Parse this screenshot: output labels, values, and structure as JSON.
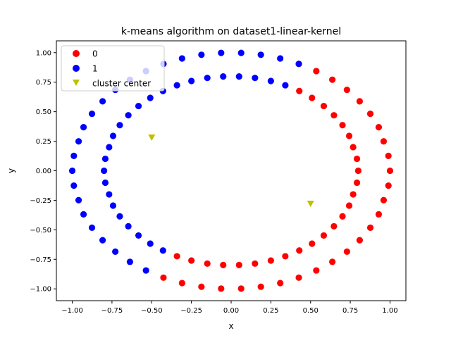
{
  "chart_data": {
    "type": "scatter",
    "title": "k-means algorithm on dataset1-linear-kernel",
    "xlabel": "x",
    "ylabel": "y",
    "xlim": [
      -1.1,
      1.1
    ],
    "ylim": [
      -1.1,
      1.1
    ],
    "grid": false,
    "legend_position": "top-left",
    "x_ticks": [
      -1.0,
      -0.75,
      -0.5,
      -0.25,
      0.0,
      0.25,
      0.5,
      0.75,
      1.0
    ],
    "y_ticks": [
      -1.0,
      -0.75,
      -0.5,
      -0.25,
      0.0,
      0.25,
      0.5,
      0.75,
      1.0
    ],
    "x_tick_labels": [
      "−1.00",
      "−0.75",
      "−0.50",
      "−0.25",
      "0.00",
      "0.25",
      "0.50",
      "0.75",
      "1.00"
    ],
    "y_tick_labels": [
      "−1.00",
      "−0.75",
      "−0.50",
      "−0.25",
      "0.00",
      "0.25",
      "0.50",
      "0.75",
      "1.00"
    ],
    "series": [
      {
        "name": "0",
        "color": "#ff0000",
        "marker": "circle",
        "points": [
          [
            1.0,
            0.0
          ],
          [
            0.99,
            0.126
          ],
          [
            0.96,
            0.249
          ],
          [
            0.929,
            0.369
          ],
          [
            0.876,
            0.482
          ],
          [
            0.809,
            0.588
          ],
          [
            0.729,
            0.685
          ],
          [
            0.637,
            0.771
          ],
          [
            0.536,
            0.844
          ],
          [
            0.426,
            0.905
          ],
          [
            0.99,
            -0.126
          ],
          [
            0.96,
            -0.249
          ],
          [
            0.929,
            -0.369
          ],
          [
            0.876,
            -0.482
          ],
          [
            0.809,
            -0.588
          ],
          [
            0.729,
            -0.685
          ],
          [
            0.637,
            -0.771
          ],
          [
            0.536,
            -0.844
          ],
          [
            0.426,
            -0.905
          ],
          [
            0.309,
            -0.951
          ],
          [
            0.187,
            -0.982
          ],
          [
            0.063,
            -0.998
          ],
          [
            -0.063,
            -0.998
          ],
          [
            -0.187,
            -0.982
          ],
          [
            -0.309,
            -0.951
          ],
          [
            -0.426,
            -0.905
          ],
          [
            0.8,
            0.0
          ],
          [
            0.792,
            0.101
          ],
          [
            0.768,
            0.2
          ],
          [
            0.743,
            0.295
          ],
          [
            0.701,
            0.386
          ],
          [
            0.647,
            0.47
          ],
          [
            0.583,
            0.548
          ],
          [
            0.509,
            0.617
          ],
          [
            0.429,
            0.675
          ],
          [
            0.792,
            -0.101
          ],
          [
            0.768,
            -0.2
          ],
          [
            0.743,
            -0.295
          ],
          [
            0.701,
            -0.386
          ],
          [
            0.647,
            -0.47
          ],
          [
            0.583,
            -0.548
          ],
          [
            0.509,
            -0.617
          ],
          [
            0.429,
            -0.675
          ],
          [
            0.341,
            -0.724
          ],
          [
            0.25,
            -0.76
          ],
          [
            0.15,
            -0.786
          ],
          [
            0.05,
            -0.798
          ],
          [
            -0.05,
            -0.798
          ],
          [
            -0.15,
            -0.786
          ],
          [
            -0.25,
            -0.76
          ],
          [
            -0.341,
            -0.724
          ]
        ]
      },
      {
        "name": "1",
        "color": "#0000ff",
        "marker": "circle",
        "points": [
          [
            -1.0,
            0.0
          ],
          [
            -0.99,
            0.126
          ],
          [
            -0.96,
            0.249
          ],
          [
            -0.929,
            0.369
          ],
          [
            -0.876,
            0.482
          ],
          [
            -0.809,
            0.588
          ],
          [
            -0.729,
            0.685
          ],
          [
            -0.637,
            0.771
          ],
          [
            -0.536,
            0.844
          ],
          [
            -0.426,
            0.905
          ],
          [
            -0.99,
            -0.126
          ],
          [
            -0.96,
            -0.249
          ],
          [
            -0.929,
            -0.369
          ],
          [
            -0.876,
            -0.482
          ],
          [
            -0.809,
            -0.588
          ],
          [
            -0.729,
            -0.685
          ],
          [
            -0.637,
            -0.771
          ],
          [
            -0.536,
            -0.844
          ],
          [
            -0.309,
            0.951
          ],
          [
            -0.187,
            0.982
          ],
          [
            -0.063,
            0.998
          ],
          [
            0.063,
            0.998
          ],
          [
            0.187,
            0.982
          ],
          [
            0.309,
            0.951
          ],
          [
            0.426,
            0.905
          ],
          [
            -0.8,
            0.0
          ],
          [
            -0.792,
            0.101
          ],
          [
            -0.768,
            0.2
          ],
          [
            -0.743,
            0.295
          ],
          [
            -0.701,
            0.386
          ],
          [
            -0.647,
            0.47
          ],
          [
            -0.583,
            0.548
          ],
          [
            -0.509,
            0.617
          ],
          [
            -0.429,
            0.675
          ],
          [
            -0.792,
            -0.101
          ],
          [
            -0.768,
            -0.2
          ],
          [
            -0.743,
            -0.295
          ],
          [
            -0.701,
            -0.386
          ],
          [
            -0.647,
            -0.47
          ],
          [
            -0.583,
            -0.548
          ],
          [
            -0.509,
            -0.617
          ],
          [
            -0.429,
            -0.675
          ],
          [
            -0.341,
            0.724
          ],
          [
            -0.25,
            0.76
          ],
          [
            -0.15,
            0.786
          ],
          [
            -0.05,
            0.798
          ],
          [
            0.05,
            0.798
          ],
          [
            0.15,
            0.786
          ],
          [
            0.25,
            0.76
          ],
          [
            0.341,
            0.724
          ]
        ]
      },
      {
        "name": "cluster center",
        "color": "#bfbf00",
        "marker": "triangle-down",
        "points": [
          [
            -0.5,
            0.28
          ],
          [
            0.5,
            -0.28
          ]
        ]
      }
    ]
  }
}
